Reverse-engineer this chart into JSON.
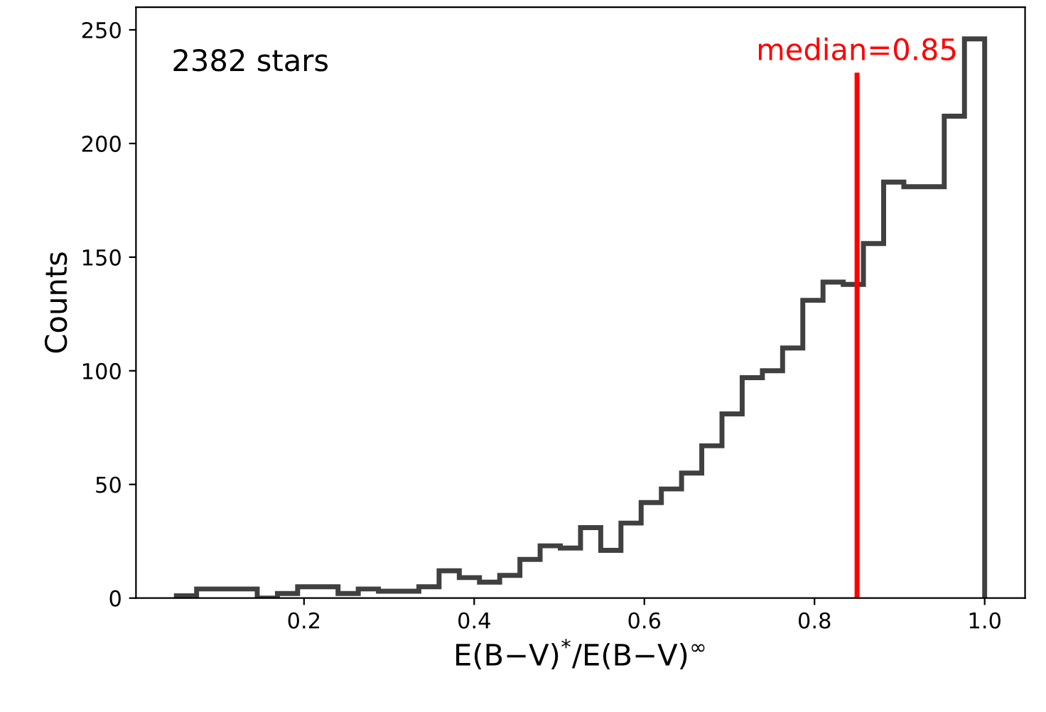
{
  "chart_data": {
    "type": "histogram",
    "xlabel": "E(B−V)$^{*}$/E(B−V)$^{∞}$",
    "ylabel": "Counts",
    "color": "#404040",
    "bins": [
      0.05,
      0.07375,
      0.0975,
      0.12125,
      0.145,
      0.16875,
      0.1925,
      0.21625,
      0.24,
      0.26375,
      0.2875,
      0.31125,
      0.335,
      0.35875,
      0.3825,
      0.40625,
      0.43,
      0.45375,
      0.4775,
      0.50125,
      0.525,
      0.54875,
      0.5725,
      0.59625,
      0.62,
      0.64375,
      0.6675,
      0.69125,
      0.715,
      0.73875,
      0.7625,
      0.78625,
      0.81,
      0.83375,
      0.8575,
      0.88125,
      0.905,
      0.92875,
      0.9525,
      0.97625,
      1.0
    ],
    "values": [
      1,
      4,
      4,
      4,
      0,
      2,
      5,
      5,
      2,
      4,
      3,
      3,
      5,
      12,
      9,
      7,
      10,
      17,
      23,
      22,
      31,
      21,
      33,
      42,
      48,
      55,
      67,
      81,
      97,
      100,
      110,
      131,
      139,
      138,
      156,
      183,
      181,
      181,
      212,
      246
    ],
    "xlim": [
      0.0025,
      1.0475
    ],
    "ylim": [
      0,
      260
    ],
    "xticks": [
      0.2,
      0.4,
      0.6,
      0.8,
      {
        "value": 1,
        "label": "1.0"
      }
    ],
    "yticks": [
      0,
      50,
      100,
      150,
      200,
      250
    ],
    "ref_lines": [
      {
        "axis": "x",
        "value": 0.85,
        "label": "median=0.85",
        "color": "#ff0000"
      }
    ],
    "annotations": [
      "2382 stars"
    ],
    "grid": false,
    "legend": false
  }
}
